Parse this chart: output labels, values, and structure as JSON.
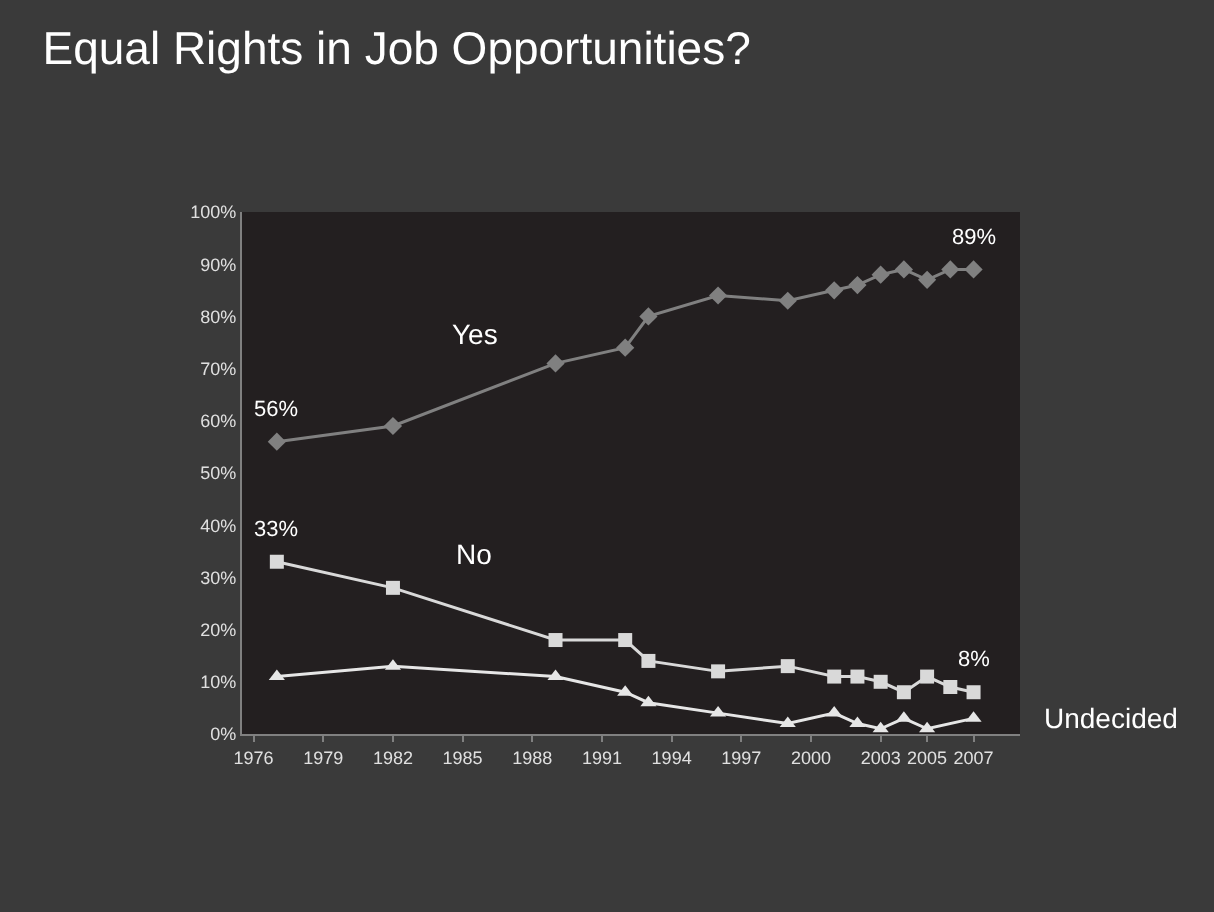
{
  "chart_data": {
    "type": "line",
    "title": "Equal Rights in Job Opportunities?",
    "x": [
      1977,
      1982,
      1989,
      1992,
      1993,
      1996,
      1999,
      2001,
      2002,
      2003,
      2004,
      2005,
      2006,
      2007
    ],
    "series": [
      {
        "name": "Yes",
        "color": "#808080",
        "marker": "diamond",
        "values": [
          56,
          59,
          71,
          74,
          80,
          84,
          83,
          85,
          86,
          88,
          89,
          87,
          89,
          89
        ],
        "value_labels": [
          "56%",
          null,
          null,
          null,
          null,
          null,
          null,
          null,
          null,
          null,
          null,
          null,
          null,
          "89%"
        ]
      },
      {
        "name": "No",
        "color": "#d9d9d9",
        "marker": "square",
        "values": [
          33,
          28,
          18,
          18,
          14,
          12,
          13,
          11,
          11,
          10,
          8,
          11,
          9,
          8
        ],
        "value_labels": [
          "33%",
          null,
          null,
          null,
          null,
          null,
          null,
          null,
          null,
          null,
          null,
          null,
          null,
          "8%"
        ]
      },
      {
        "name": "Undecided",
        "color": "#e6e6e6",
        "marker": "triangle",
        "values": [
          11,
          13,
          11,
          8,
          6,
          4,
          2,
          4,
          2,
          1,
          3,
          1,
          null,
          3
        ],
        "value_labels": [
          null,
          null,
          null,
          null,
          null,
          null,
          null,
          null,
          null,
          null,
          null,
          null,
          null,
          null
        ]
      }
    ],
    "xlim": [
      1975.5,
      2009
    ],
    "xticks": [
      1976,
      1979,
      1982,
      1985,
      1988,
      1991,
      1994,
      1997,
      2000,
      2003,
      2005,
      2007
    ],
    "ylim": [
      0,
      100
    ],
    "yticks": [
      {
        "value": 0,
        "label": "0%"
      },
      {
        "value": 10,
        "label": "10%"
      },
      {
        "value": 20,
        "label": "20%"
      },
      {
        "value": 30,
        "label": "30%"
      },
      {
        "value": 40,
        "label": "40%"
      },
      {
        "value": 50,
        "label": "50%"
      },
      {
        "value": 60,
        "label": "60%"
      },
      {
        "value": 70,
        "label": "70%"
      },
      {
        "value": 80,
        "label": "80%"
      },
      {
        "value": 90,
        "label": "90%"
      },
      {
        "value": 100,
        "label": "100%"
      }
    ],
    "grid": false,
    "legend": false,
    "line_style": "solid"
  }
}
